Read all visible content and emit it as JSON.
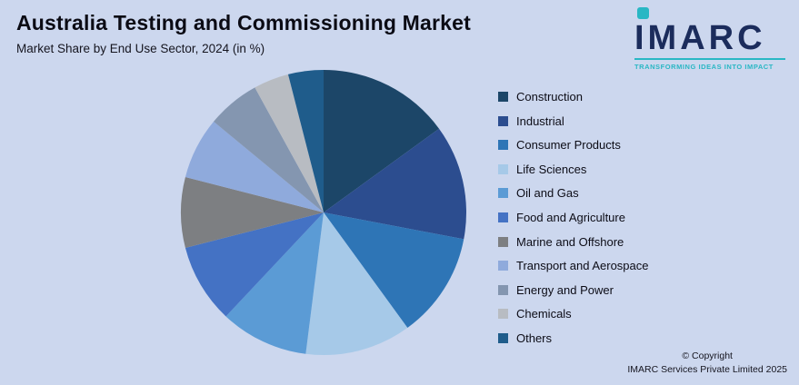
{
  "header": {
    "title": "Australia Testing and Commissioning Market",
    "subtitle": "Market Share by End Use Sector, 2024 (in %)"
  },
  "logo": {
    "name": "IMARC",
    "tagline": "TRANSFORMING IDEAS INTO IMPACT",
    "accent_color": "#29b7c4",
    "text_color": "#1b2c5c"
  },
  "footer": {
    "line1": "© Copyright",
    "line2": "IMARC Services Private Limited 2025"
  },
  "colors": {
    "background": "#ccd7ee"
  },
  "chart_data": {
    "type": "pie",
    "title": "Australia Testing and Commissioning Market",
    "subtitle": "Market Share by End Use Sector, 2024 (in %)",
    "legend_position": "right",
    "start_angle_deg": -90,
    "direction": "clockwise",
    "units": "%",
    "segments": [
      {
        "label": "Construction",
        "value": 15,
        "color": "#1c4668"
      },
      {
        "label": "Industrial",
        "value": 13,
        "color": "#2c4d8f"
      },
      {
        "label": "Consumer Products",
        "value": 12,
        "color": "#2e75b6"
      },
      {
        "label": "Life Sciences",
        "value": 12,
        "color": "#a6c9e8"
      },
      {
        "label": "Oil and Gas",
        "value": 10,
        "color": "#5b9bd5"
      },
      {
        "label": "Food and Agriculture",
        "value": 9,
        "color": "#4472c4"
      },
      {
        "label": "Marine and Offshore",
        "value": 8,
        "color": "#7d7f82"
      },
      {
        "label": "Transport and Aerospace",
        "value": 7,
        "color": "#8faadc"
      },
      {
        "label": "Energy and Power",
        "value": 6,
        "color": "#8496b0"
      },
      {
        "label": "Chemicals",
        "value": 4,
        "color": "#b8bcc2"
      },
      {
        "label": "Others",
        "value": 4,
        "color": "#1f5c8b"
      }
    ]
  }
}
